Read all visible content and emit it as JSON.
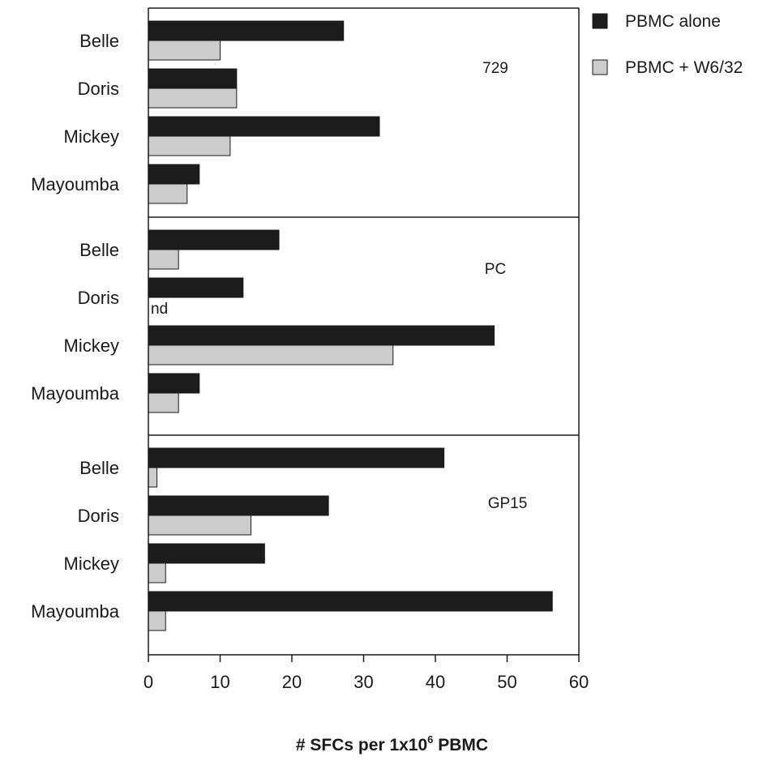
{
  "chart_data": {
    "type": "bar",
    "orientation": "horizontal",
    "xlim": [
      0,
      60
    ],
    "xticks": [
      0,
      10,
      20,
      30,
      40,
      50,
      60
    ],
    "xlabel": {
      "prefix": "# SFCs per 1x10",
      "superscript": "6",
      "suffix": " PBMC"
    },
    "legend_position": "top-right",
    "categories": [
      "Belle",
      "Doris",
      "Mickey",
      "Mayoumba"
    ],
    "series": [
      {
        "name": "PBMC alone",
        "color": "#1c1c1c"
      },
      {
        "name": "PBMC + W6/32",
        "color": "#cccccc"
      }
    ],
    "panels": [
      {
        "label": "729",
        "values": {
          "PBMC alone": [
            27.2,
            12.3,
            32.2,
            7.1
          ],
          "PBMC + W6/32": [
            10.0,
            12.3,
            11.4,
            5.4
          ]
        },
        "annotations": []
      },
      {
        "label": "PC",
        "values": {
          "PBMC alone": [
            18.2,
            13.2,
            48.2,
            7.1
          ],
          "PBMC + W6/32": [
            4.2,
            null,
            34.1,
            4.2
          ]
        },
        "annotations": [
          {
            "category": "Doris",
            "series": "PBMC + W6/32",
            "text": "nd"
          }
        ]
      },
      {
        "label": "GP15",
        "values": {
          "PBMC alone": [
            41.2,
            25.1,
            16.2,
            56.3
          ],
          "PBMC + W6/32": [
            1.2,
            14.3,
            2.4,
            2.4
          ]
        },
        "annotations": []
      }
    ]
  }
}
